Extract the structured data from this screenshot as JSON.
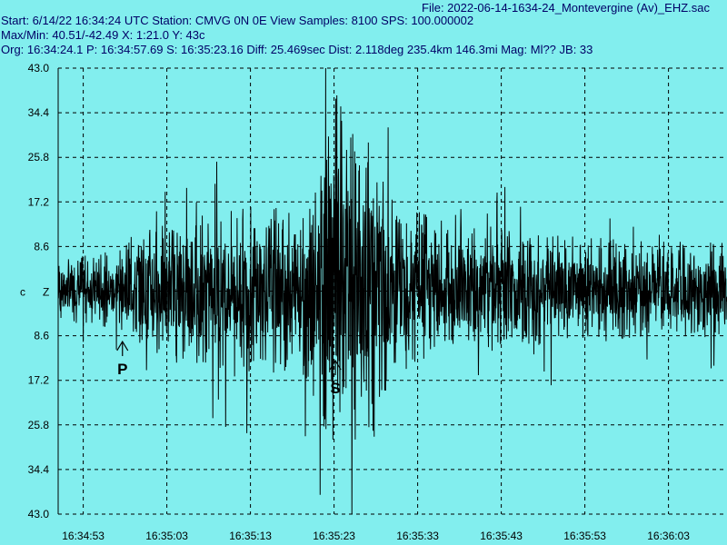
{
  "header": {
    "file_line": "File: 2022-06-14-1634-24_Montevergine (Av)_EHZ.sac",
    "start_line": "Start: 6/14/22 16:34:24 UTC Station: CMVG 0N 0E View Samples: 8100  SPS: 100.000002",
    "maxmin_line": "Max/Min: 40.51/-42.49 X: 1:21.0 Y: 43c",
    "org_line": "Org: 16:34:24.1 P: 16:34:57.69 S: 16:35:23.16 Diff: 25.469sec Dist: 2.118deg 235.4km 146.3mi  Mag: Ml?? JB: 33"
  },
  "colors": {
    "background": "#82eeee",
    "header_text": "#000066",
    "trace": "#000000",
    "grid": "#000000"
  },
  "chart_data": {
    "type": "line",
    "channel_label": "c",
    "component_label": "Z",
    "y_tick_labels": [
      "43.0",
      "34.4",
      "25.8",
      "17.2",
      "8.6",
      "",
      "8.6",
      "17.2",
      "25.8",
      "34.4",
      "43.0"
    ],
    "y_tick_values": [
      43.0,
      34.4,
      25.8,
      17.2,
      8.6,
      0,
      -8.6,
      -17.2,
      -25.8,
      -34.4,
      -43.0
    ],
    "ylim": [
      -43.0,
      43.0
    ],
    "x_tick_labels": [
      "16:34:53",
      "16:35:03",
      "16:35:13",
      "16:35:23",
      "16:35:33",
      "16:35:43",
      "16:35:53",
      "16:36:03"
    ],
    "x_tick_seconds": [
      53,
      63,
      73,
      83,
      93,
      103,
      113,
      123
    ],
    "xlim_seconds": [
      50,
      130
    ],
    "grid": true,
    "markers": [
      {
        "label": "P",
        "time_seconds": 57.69
      },
      {
        "label": "S",
        "time_seconds": 83.16
      }
    ],
    "envelope": [
      {
        "t": 50,
        "amp": 6
      },
      {
        "t": 55,
        "amp": 7
      },
      {
        "t": 57.7,
        "amp": 8
      },
      {
        "t": 60,
        "amp": 12
      },
      {
        "t": 66,
        "amp": 14
      },
      {
        "t": 72,
        "amp": 16
      },
      {
        "t": 78,
        "amp": 16
      },
      {
        "t": 81,
        "amp": 20
      },
      {
        "t": 83.2,
        "amp": 40
      },
      {
        "t": 84.5,
        "amp": 38
      },
      {
        "t": 86,
        "amp": 25
      },
      {
        "t": 87.5,
        "amp": 34
      },
      {
        "t": 89,
        "amp": 20
      },
      {
        "t": 95,
        "amp": 14
      },
      {
        "t": 105,
        "amp": 11
      },
      {
        "t": 115,
        "amp": 10
      },
      {
        "t": 130,
        "amp": 9
      }
    ],
    "baseline_offset": 0.3,
    "seed": 7
  }
}
